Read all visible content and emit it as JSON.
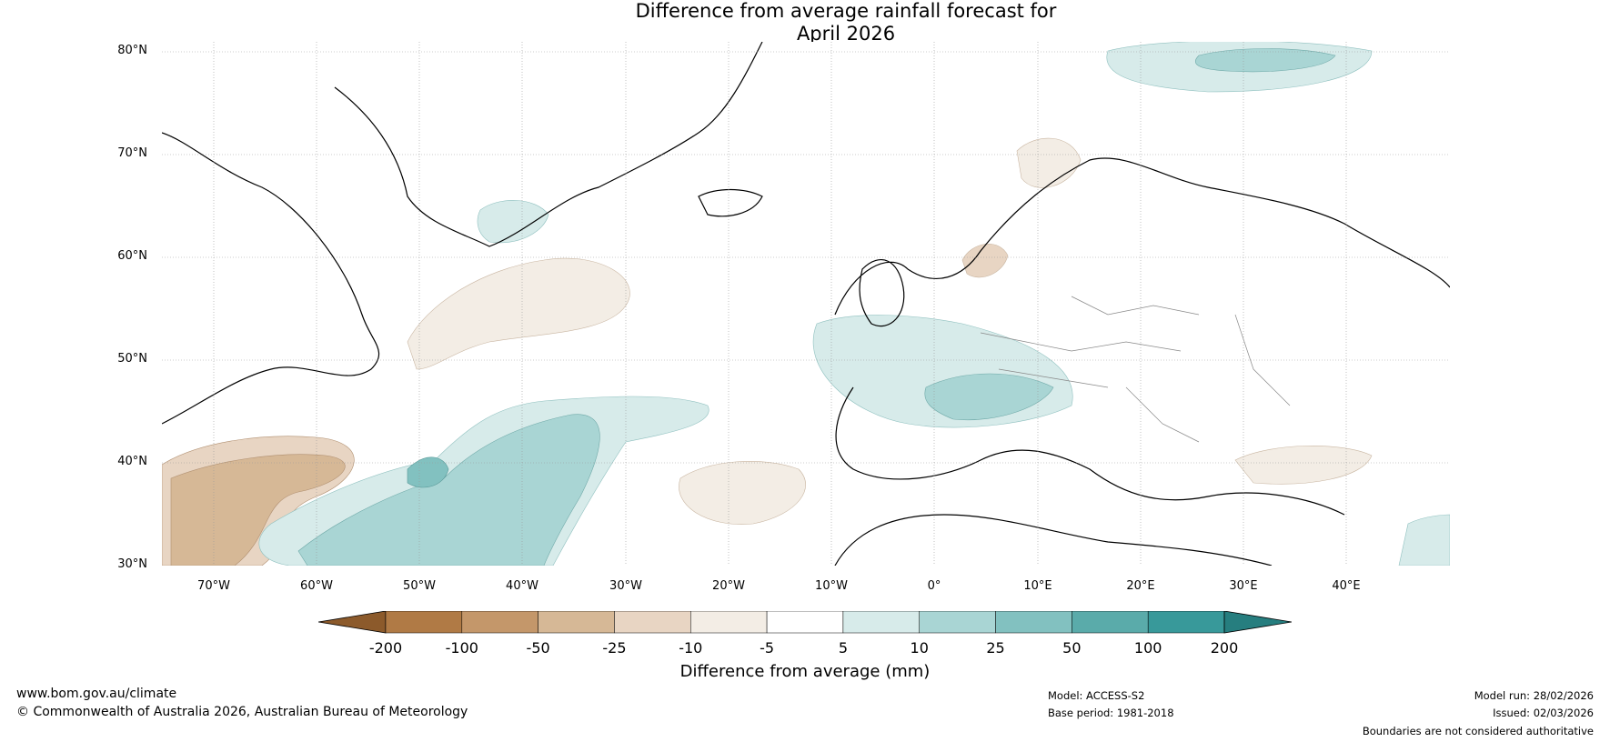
{
  "title": {
    "line1": "Difference from average rainfall forecast for",
    "line2": "April 2026"
  },
  "map": {
    "projection": "equirectangular",
    "lat_range": [
      30,
      80
    ],
    "lon_range": [
      -75,
      50
    ],
    "lat_labels": [
      "80°N",
      "70°N",
      "60°N",
      "50°N",
      "40°N",
      "30°N"
    ],
    "lon_labels": [
      "70°W",
      "60°W",
      "50°W",
      "40°W",
      "30°W",
      "20°W",
      "10°W",
      "0°",
      "10°E",
      "20°E",
      "30°E",
      "40°E"
    ],
    "regions": {
      "dry_sw": "dry-anomaly",
      "wet_atlantic": "wet-anomaly",
      "wet_europe": "wet-anomaly"
    }
  },
  "colorbar": {
    "title": "Difference from average (mm)",
    "ticks": [
      "-200",
      "-100",
      "-50",
      "-25",
      "-10",
      "-5",
      "5",
      "10",
      "25",
      "50",
      "100",
      "200"
    ],
    "colors": [
      "#8c5a2b",
      "#b07a45",
      "#c4976a",
      "#d6b896",
      "#e8d5c3",
      "#f3ede5",
      "#ffffff",
      "#d7ebea",
      "#a9d5d4",
      "#82c1c0",
      "#5aabaa",
      "#38999a",
      "#267e7f"
    ]
  },
  "footer": {
    "website": "www.bom.gov.au/climate",
    "copyright": "© Commonwealth of Australia 2026, Australian Bureau of Meteorology",
    "model": "Model: ACCESS-S2",
    "base_period": "Base period: 1981-2018",
    "model_run": "Model run: 28/02/2026",
    "issued": "Issued: 02/03/2026",
    "disclaimer": "Boundaries are not considered authoritative"
  }
}
